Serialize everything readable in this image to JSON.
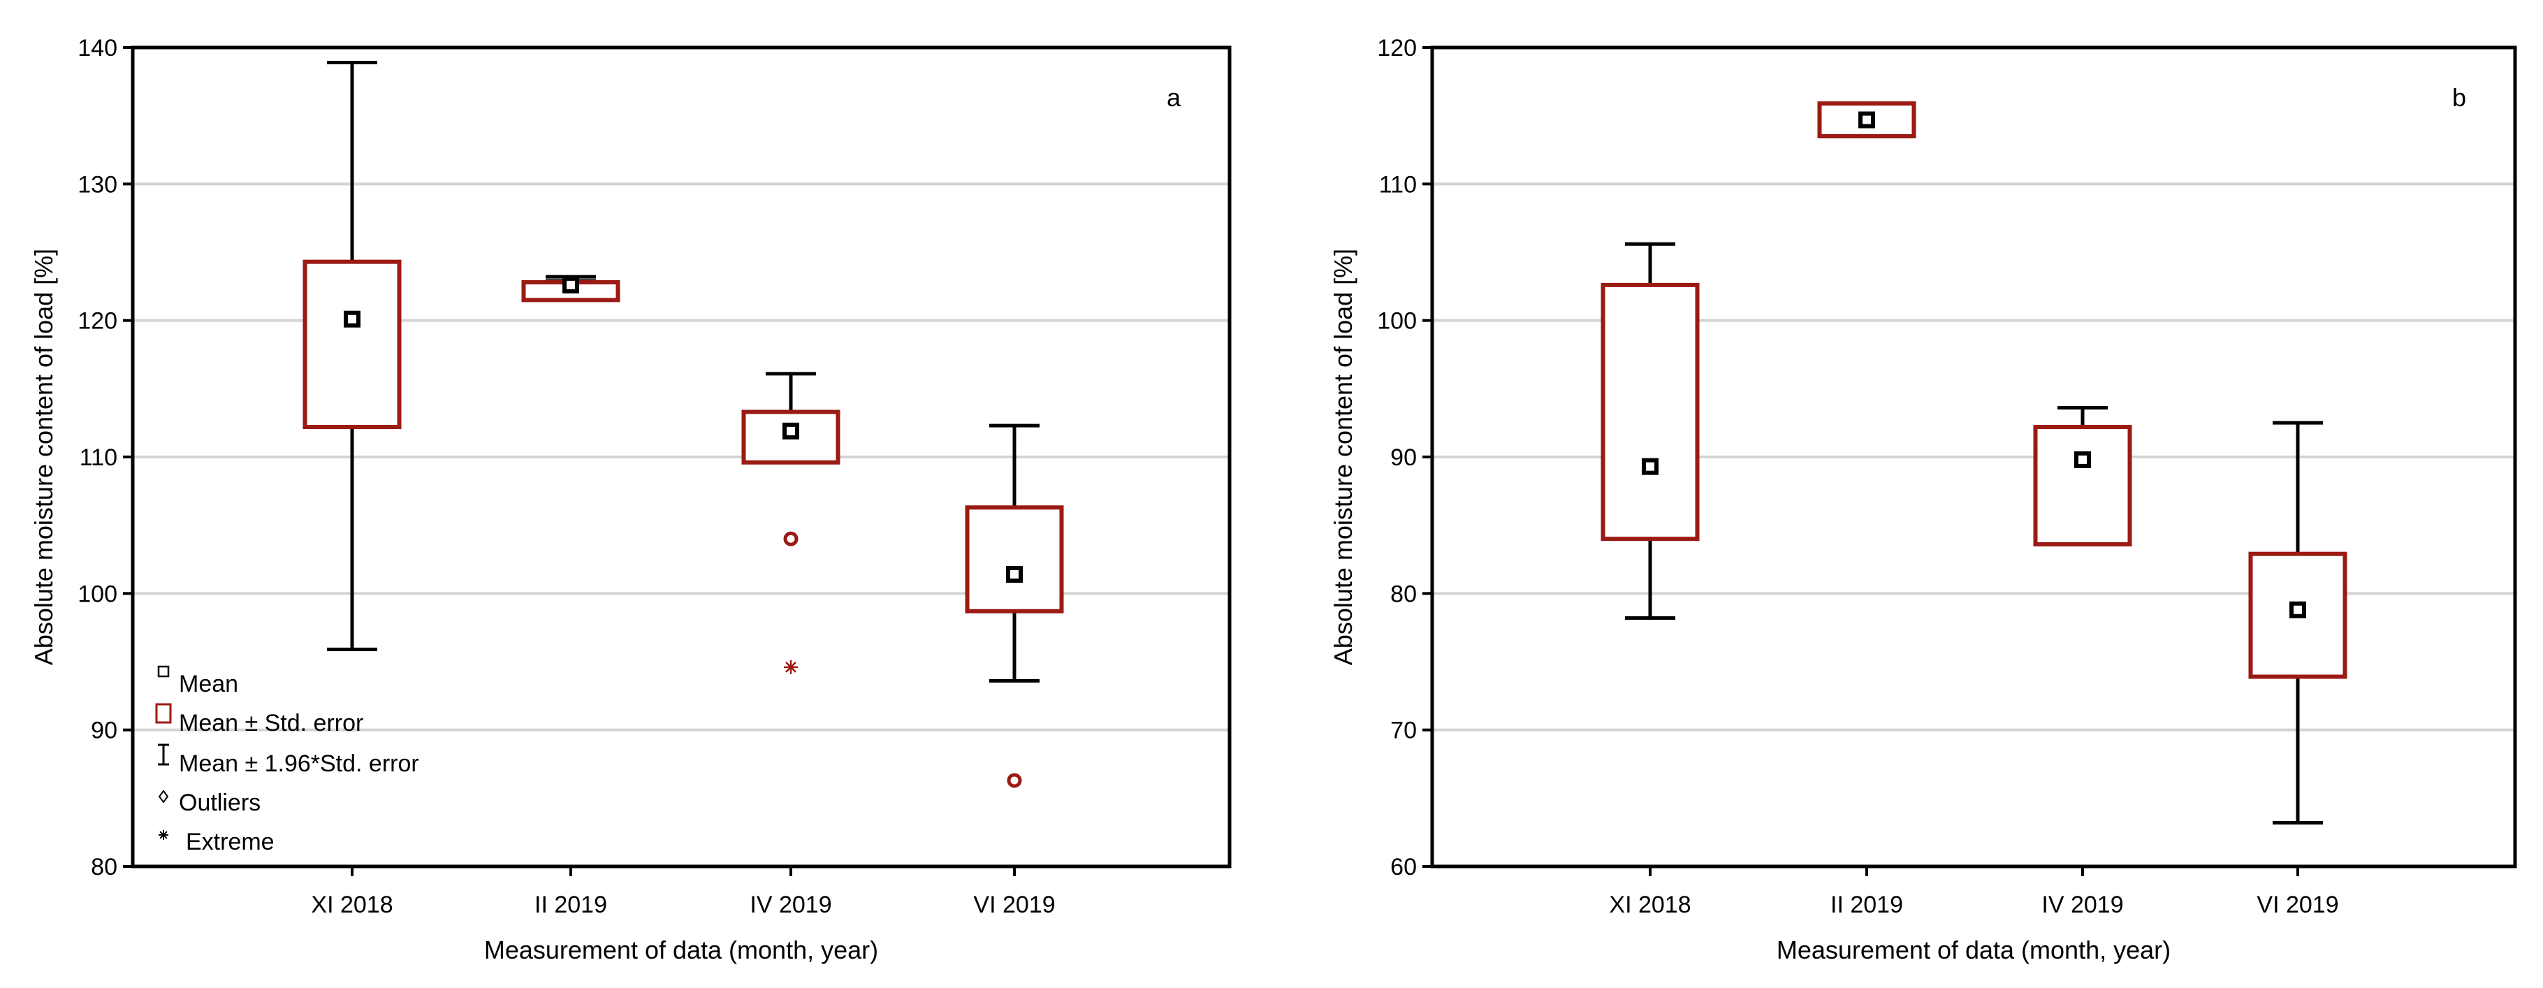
{
  "colors": {
    "box": "#9b1a14",
    "whisker": "#000000",
    "grid": "#d4d4d4",
    "axis": "#000000"
  },
  "legend": {
    "mean": "Mean",
    "se": "Mean ± Std. error",
    "ci": "Mean ±  1.96*Std. error",
    "outliers": "Outliers",
    "extreme": "Extreme"
  },
  "chart_data": [
    {
      "type": "boxplot",
      "panel_label": "a",
      "xlabel": "Measurement of data (month, year)",
      "ylabel": "Absolute moisture content of load [%]",
      "categories": [
        "XI 2018",
        "II 2019",
        "IV 2019",
        "VI 2019"
      ],
      "ylim": [
        80,
        140
      ],
      "yticks": [
        80,
        90,
        100,
        110,
        120,
        130,
        140
      ],
      "grid": true,
      "legend_position": "bottom-left",
      "series": [
        {
          "category": "XI 2018",
          "mean": 120.1,
          "se_low": 112.2,
          "se_high": 124.3,
          "ci_low": 95.9,
          "ci_high": 138.9,
          "outliers": [],
          "extremes": []
        },
        {
          "category": "II 2019",
          "mean": 122.6,
          "se_low": 121.5,
          "se_high": 122.8,
          "ci_low": 122.9,
          "ci_high": 123.2,
          "outliers": [],
          "extremes": []
        },
        {
          "category": "IV 2019",
          "mean": 111.9,
          "se_low": 109.6,
          "se_high": 113.3,
          "ci_low": 109.6,
          "ci_high": 116.1,
          "outliers": [
            104.0
          ],
          "extremes": [
            94.6
          ]
        },
        {
          "category": "VI 2019",
          "mean": 101.4,
          "se_low": 98.7,
          "se_high": 106.3,
          "ci_low": 93.6,
          "ci_high": 112.3,
          "outliers": [
            86.3
          ],
          "extremes": []
        }
      ]
    },
    {
      "type": "boxplot",
      "panel_label": "b",
      "xlabel": "Measurement of data (month, year)",
      "ylabel": "Absolute moisture content of load [%]",
      "categories": [
        "XI 2018",
        "II 2019",
        "IV 2019",
        "VI 2019"
      ],
      "ylim": [
        60,
        120
      ],
      "yticks": [
        60,
        70,
        80,
        90,
        100,
        110,
        120
      ],
      "grid": true,
      "series": [
        {
          "category": "XI 2018",
          "mean": 89.3,
          "se_low": 84.0,
          "se_high": 102.6,
          "ci_low": 78.2,
          "ci_high": 105.6,
          "outliers": [],
          "extremes": []
        },
        {
          "category": "II 2019",
          "mean": 114.7,
          "se_low": 113.5,
          "se_high": 115.9,
          "ci_low": 113.5,
          "ci_high": 115.9,
          "outliers": [],
          "extremes": []
        },
        {
          "category": "IV 2019",
          "mean": 89.8,
          "se_low": 83.6,
          "se_high": 92.2,
          "ci_low": 83.6,
          "ci_high": 93.6,
          "outliers": [],
          "extremes": []
        },
        {
          "category": "VI 2019",
          "mean": 78.8,
          "se_low": 73.9,
          "se_high": 82.9,
          "ci_low": 63.2,
          "ci_high": 92.5,
          "outliers": [],
          "extremes": []
        }
      ]
    }
  ]
}
